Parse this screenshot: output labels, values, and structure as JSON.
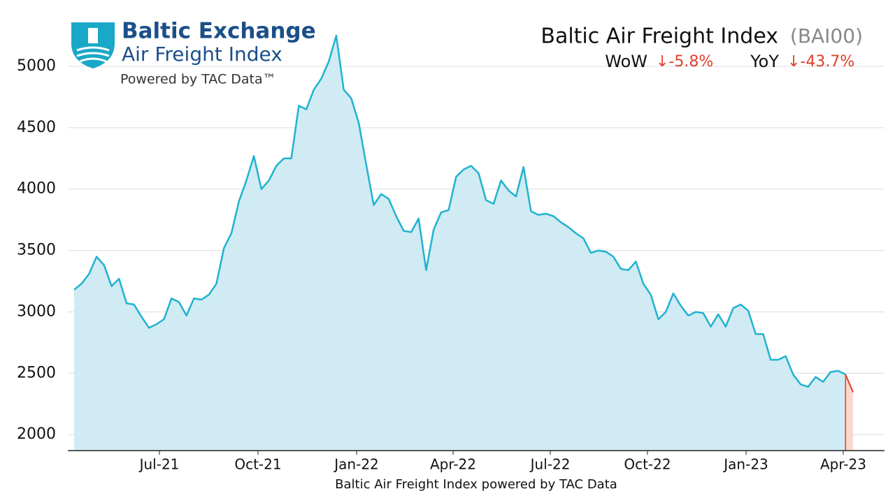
{
  "chart_data": {
    "type": "line",
    "title": "Baltic Air Freight Index",
    "title_code": "(BAI00)",
    "wow_label": "WoW",
    "wow_value": "↓-5.8%",
    "yoy_label": "YoY",
    "yoy_value": "↓-43.7%",
    "xlabel": "Baltic Air Freight Index powered by TAC Data",
    "logo": {
      "name": "Baltic Exchange",
      "subtitle": "Air Freight Index",
      "powered": "Powered by TAC Data™"
    },
    "values": [
      3180,
      3230,
      3310,
      3450,
      3380,
      3210,
      3270,
      3070,
      3060,
      2960,
      2870,
      2900,
      2940,
      3110,
      3080,
      2970,
      3110,
      3100,
      3140,
      3230,
      3520,
      3640,
      3900,
      4070,
      4270,
      4000,
      4070,
      4190,
      4250,
      4250,
      4680,
      4650,
      4810,
      4900,
      5040,
      5250,
      4810,
      4740,
      4540,
      4200,
      3870,
      3960,
      3920,
      3780,
      3660,
      3650,
      3760,
      3340,
      3670,
      3810,
      3830,
      4100,
      4160,
      4190,
      4130,
      3910,
      3880,
      4070,
      3990,
      3940,
      4180,
      3820,
      3790,
      3800,
      3780,
      3730,
      3690,
      3640,
      3600,
      3480,
      3500,
      3490,
      3450,
      3350,
      3340,
      3410,
      3230,
      3140,
      2940,
      3000,
      3150,
      3050,
      2970,
      3000,
      2990,
      2880,
      2980,
      2880,
      3030,
      3060,
      3010,
      2820,
      2820,
      2610,
      2610,
      2640,
      2490,
      2410,
      2390,
      2470,
      2430,
      2510,
      2520,
      2490,
      2345
    ],
    "color": "#20b2d0",
    "fill_color": "#cdeaf2",
    "last_change_color": "#e0402a",
    "last_change_fill": "#f9d8cd",
    "xlim": [
      0,
      104
    ],
    "xticks": [
      {
        "value": 11.39,
        "label": "Jul-21"
      },
      {
        "value": 24.55,
        "label": "Oct-21"
      },
      {
        "value": 37.72,
        "label": "Jan-22"
      },
      {
        "value": 50.6,
        "label": "Apr-22"
      },
      {
        "value": 63.58,
        "label": "Jul-22"
      },
      {
        "value": 76.55,
        "label": "Oct-22"
      },
      {
        "value": 89.72,
        "label": "Jan-23"
      },
      {
        "value": 102.69,
        "label": "Apr-23"
      }
    ],
    "ylim": [
      1870,
      5370
    ],
    "yticks": [
      2000,
      2500,
      3000,
      3500,
      4000,
      4500,
      5000
    ],
    "grid": true
  }
}
